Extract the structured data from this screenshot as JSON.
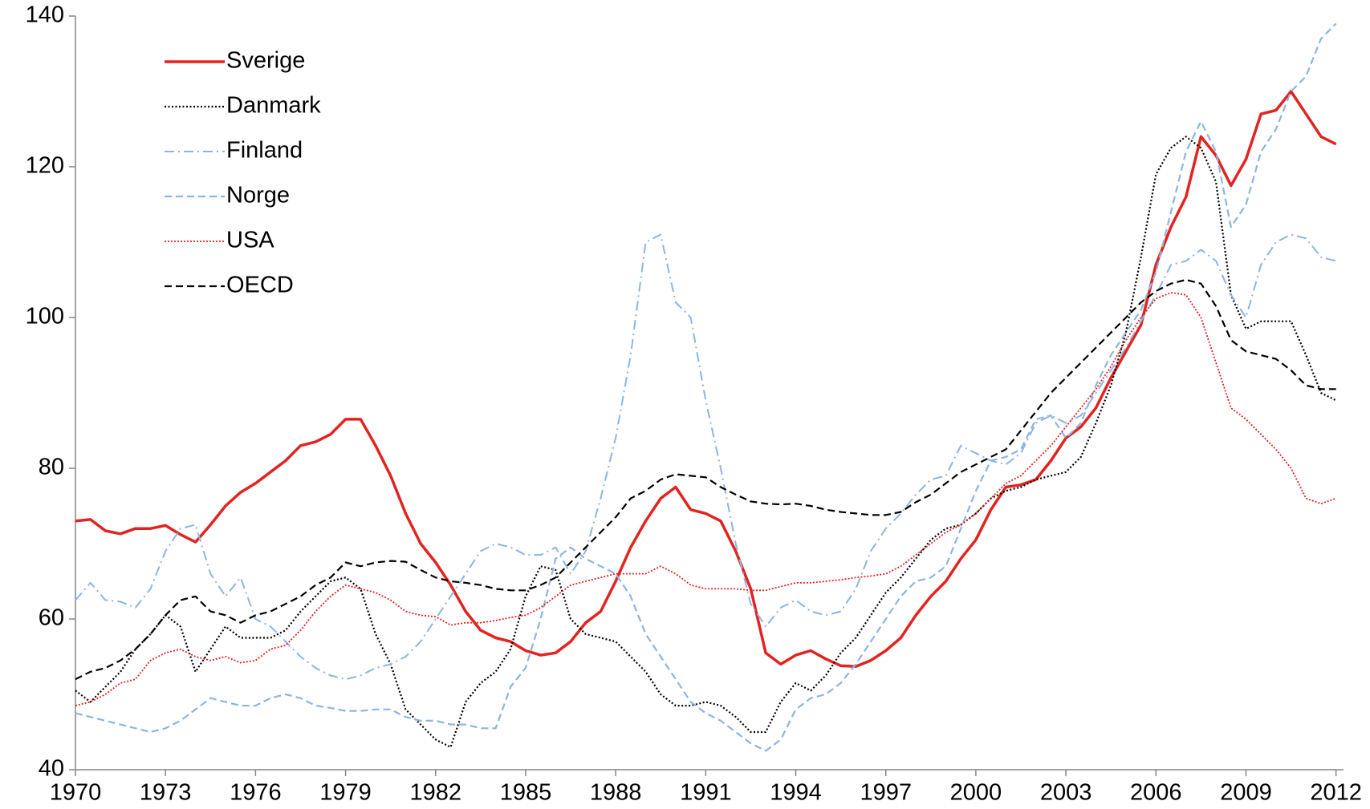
{
  "chart_data": {
    "type": "line",
    "x": [
      1970,
      1970.5,
      1971,
      1971.5,
      1972,
      1972.5,
      1973,
      1973.5,
      1974,
      1974.5,
      1975,
      1975.5,
      1976,
      1976.5,
      1977,
      1977.5,
      1978,
      1978.5,
      1979,
      1979.5,
      1980,
      1980.5,
      1981,
      1981.5,
      1982,
      1982.5,
      1983,
      1983.5,
      1984,
      1984.5,
      1985,
      1985.5,
      1986,
      1986.5,
      1987,
      1987.5,
      1988,
      1988.5,
      1989,
      1989.5,
      1990,
      1990.5,
      1991,
      1991.5,
      1992,
      1992.5,
      1993,
      1993.5,
      1994,
      1994.5,
      1995,
      1995.5,
      1996,
      1996.5,
      1997,
      1997.5,
      1998,
      1998.5,
      1999,
      1999.5,
      2000,
      2000.5,
      2001,
      2001.5,
      2002,
      2002.5,
      2003,
      2003.5,
      2004,
      2004.5,
      2005,
      2005.5,
      2006,
      2006.5,
      2007,
      2007.5,
      2008,
      2008.5,
      2009,
      2009.5,
      2010,
      2010.5,
      2011,
      2011.5,
      2012
    ],
    "series": [
      {
        "name": "Sverige",
        "color": "#e3231f",
        "style": "solid",
        "values": [
          73,
          73.2,
          71.7,
          71.3,
          72,
          72,
          72.4,
          71.2,
          70.2,
          72.5,
          75,
          76.8,
          78,
          79.5,
          81,
          83,
          83.5,
          84.5,
          86.5,
          86.5,
          83,
          79,
          74,
          70,
          67.5,
          64.5,
          61,
          58.5,
          57.5,
          57,
          55.8,
          55.2,
          55.5,
          57,
          59.5,
          61,
          65,
          69.5,
          73,
          76,
          77.5,
          74.5,
          74,
          73,
          69,
          64,
          55.5,
          54,
          55.2,
          55.8,
          54.7,
          53.8,
          53.7,
          54.5,
          55.8,
          57.5,
          60.5,
          63,
          65,
          68,
          70.5,
          74.5,
          77.5,
          77.8,
          78.5,
          81,
          84,
          85.5,
          88,
          92,
          95.5,
          99,
          107,
          112,
          116,
          124,
          121.5,
          117.5,
          121,
          127,
          127.5,
          130,
          127,
          124,
          123
        ]
      },
      {
        "name": "Danmark",
        "color": "#000000",
        "style": "dotted",
        "values": [
          50.5,
          49,
          51,
          53,
          56,
          58,
          60.5,
          59,
          53,
          56,
          59,
          57.5,
          57.5,
          57.5,
          58.5,
          61,
          63,
          65,
          65.5,
          64,
          58,
          54,
          48,
          46,
          44,
          43,
          49,
          51.5,
          53,
          56,
          63,
          67,
          66.5,
          60,
          58,
          57.5,
          57,
          55,
          53,
          50,
          48.5,
          48.5,
          49,
          48.5,
          47,
          45,
          45,
          49,
          51.5,
          50.5,
          52.5,
          55.5,
          57.5,
          60.5,
          63.5,
          65.5,
          68,
          70.5,
          72,
          72.5,
          74,
          76,
          77,
          77.5,
          78.5,
          79,
          79.5,
          81.5,
          86,
          91,
          98,
          108,
          119,
          122.5,
          124,
          122.5,
          118,
          103,
          98.5,
          99.5,
          99.5,
          99.5,
          95,
          90,
          89
        ]
      },
      {
        "name": "Finland",
        "color": "#8db4e2",
        "style": "dashdot",
        "values": [
          62.5,
          64.8,
          62.5,
          62.3,
          61.5,
          64,
          69,
          72,
          72.5,
          66,
          63,
          65.5,
          60,
          59,
          57,
          55,
          53.5,
          52.5,
          52,
          52.5,
          53.5,
          54,
          55,
          57,
          60,
          63,
          66,
          69,
          70,
          69.5,
          68.5,
          68.5,
          69.5,
          66,
          69,
          76,
          84,
          95,
          110,
          111,
          102,
          100,
          89,
          80,
          70,
          62,
          59,
          61.5,
          62.5,
          61,
          60.5,
          61,
          64,
          69,
          72,
          74,
          76.5,
          78.5,
          79,
          83,
          82,
          81,
          80.5,
          82,
          86,
          87,
          86,
          87,
          90,
          93,
          96,
          99.5,
          103,
          107,
          107.5,
          109,
          107.5,
          103,
          100,
          107,
          110,
          111,
          110.5,
          108,
          107.5
        ]
      },
      {
        "name": "Norge",
        "color": "#8db4e2",
        "style": "dashed",
        "values": [
          47.5,
          47,
          46.5,
          46,
          45.5,
          45,
          45.5,
          46.5,
          48,
          49.5,
          49,
          48.5,
          48.5,
          49.5,
          50,
          49.5,
          48.5,
          48.2,
          47.8,
          47.8,
          48,
          48,
          47,
          46.5,
          46.5,
          46,
          46,
          45.5,
          45.5,
          51,
          53.5,
          60,
          68,
          69.5,
          68,
          67,
          66,
          63,
          58,
          55,
          52,
          49,
          47.5,
          46.5,
          45,
          43.5,
          42.5,
          44,
          48,
          49.5,
          50,
          51.5,
          54,
          57,
          60,
          63,
          65,
          65.5,
          67,
          72,
          77,
          81,
          81.5,
          82.5,
          86.5,
          87,
          84,
          86,
          91,
          95,
          98,
          101,
          106,
          114,
          122,
          126,
          122,
          112,
          115,
          122,
          125,
          130,
          132,
          137,
          139
        ]
      },
      {
        "name": "USA",
        "color": "#e3231f",
        "style": "finedot",
        "values": [
          48.5,
          49,
          50,
          51.5,
          52,
          54.5,
          55.5,
          56,
          55,
          54.5,
          55,
          54.2,
          54.5,
          56,
          56.5,
          58.5,
          61,
          63,
          64.5,
          64,
          63.5,
          62.5,
          61,
          60.5,
          60.3,
          59.2,
          59.5,
          59.5,
          59.8,
          60.2,
          60.5,
          61.5,
          63,
          64.5,
          65,
          65.5,
          66,
          66,
          66,
          67,
          66,
          64.5,
          64,
          64,
          64,
          63.8,
          63.8,
          64.3,
          64.8,
          64.8,
          65,
          65.2,
          65.5,
          65.7,
          66,
          67,
          68.5,
          70,
          71.5,
          72.5,
          74,
          76,
          78,
          79,
          81,
          83,
          85.5,
          88,
          90.5,
          93.5,
          97,
          100,
          102.5,
          103.3,
          103,
          100,
          94,
          88,
          86.5,
          84.5,
          82.5,
          80,
          76,
          75.3,
          76
        ]
      },
      {
        "name": "OECD",
        "color": "#000000",
        "style": "dashed",
        "values": [
          52,
          53,
          53.5,
          54.5,
          56,
          58,
          60.5,
          62.5,
          63,
          61,
          60.5,
          59.5,
          60.5,
          61,
          62,
          63,
          64.5,
          65.5,
          67.5,
          67,
          67.5,
          67.7,
          67.6,
          66.5,
          65.5,
          65,
          64.8,
          64.5,
          64,
          63.8,
          63.8,
          64.5,
          65.5,
          67.5,
          69.5,
          71.5,
          73.5,
          76,
          77,
          78.5,
          79.2,
          79,
          78.8,
          77.5,
          76.5,
          75.6,
          75.3,
          75.2,
          75.3,
          75,
          74.5,
          74.2,
          74,
          73.8,
          73.8,
          74.2,
          75.5,
          76.5,
          78,
          79.5,
          80.5,
          81.5,
          82.5,
          85,
          87.5,
          90,
          92,
          94,
          96,
          98,
          100,
          102,
          103.5,
          104.5,
          105,
          104.5,
          101.5,
          97,
          95.5,
          95,
          94.5,
          93,
          91,
          90.5,
          90.5
        ]
      }
    ],
    "xlim": [
      1970,
      2012.25
    ],
    "xticks": [
      1970,
      1973,
      1976,
      1979,
      1982,
      1985,
      1988,
      1991,
      1994,
      1997,
      2000,
      2003,
      2006,
      2009,
      2012
    ],
    "ylim": [
      40,
      140
    ],
    "yticks": [
      40,
      60,
      80,
      100,
      120,
      140
    ],
    "legend": "upper left"
  }
}
